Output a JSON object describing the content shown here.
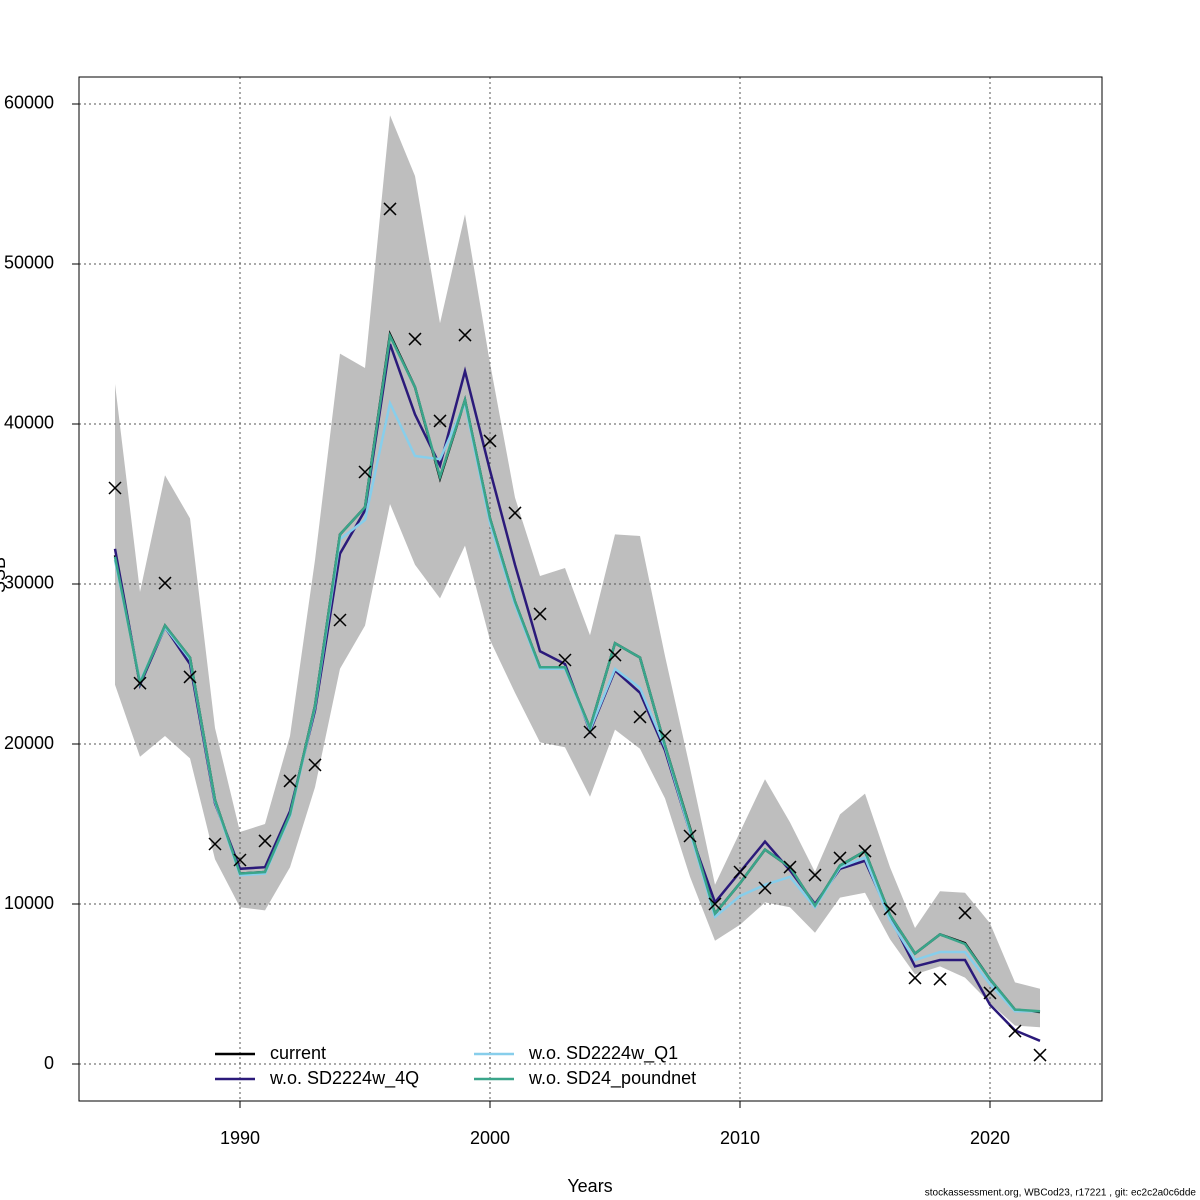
{
  "chart_data": {
    "type": "line",
    "x_label": "Years",
    "y_label": "SSB",
    "footnote": "stockassessment.org, WBCod23, r17221 , git: ec2c2a0c6dde",
    "x": [
      1985,
      1986,
      1987,
      1988,
      1989,
      1990,
      1991,
      1992,
      1993,
      1994,
      1995,
      1996,
      1997,
      1998,
      1999,
      2000,
      2001,
      2002,
      2003,
      2004,
      2005,
      2006,
      2007,
      2008,
      2009,
      2010,
      2011,
      2012,
      2013,
      2014,
      2015,
      2016,
      2017,
      2018,
      2019,
      2020,
      2021,
      2022
    ],
    "xlim": [
      1983.56,
      2024.48
    ],
    "xticks": [
      1990,
      2000,
      2010,
      2020
    ],
    "ylim": [
      -2312,
      61687
    ],
    "yticks": [
      0,
      10000,
      20000,
      30000,
      40000,
      50000,
      60000
    ],
    "grid": true,
    "band": {
      "color": "#bebebe",
      "upper": [
        42500,
        29500,
        36800,
        34100,
        21000,
        14500,
        15000,
        20500,
        31500,
        44400,
        43500,
        59300,
        55500,
        46300,
        53100,
        43800,
        35400,
        30500,
        31000,
        26800,
        33100,
        33000,
        25500,
        18500,
        11200,
        14500,
        17800,
        15100,
        12000,
        15600,
        16900,
        12300,
        8500,
        10800,
        10700,
        8800,
        5100,
        4700
      ],
      "lower": [
        23700,
        19200,
        20500,
        19100,
        12800,
        9800,
        9600,
        12300,
        17300,
        24700,
        27400,
        35000,
        31200,
        29100,
        32400,
        26500,
        23200,
        20100,
        19800,
        16700,
        20900,
        19700,
        16600,
        11700,
        7700,
        8700,
        10100,
        9800,
        8200,
        10400,
        10700,
        7800,
        5600,
        6100,
        5400,
        3800,
        2400,
        2300
      ]
    },
    "series": [
      {
        "name": "current",
        "color": "#000000",
        "values": [
          31800,
          23800,
          27400,
          25400,
          16500,
          11900,
          12000,
          15600,
          22400,
          33100,
          34800,
          45600,
          42300,
          36600,
          41500,
          34100,
          28900,
          24800,
          24800,
          21000,
          26300,
          25400,
          19900,
          14750,
          9400,
          11300,
          13400,
          12300,
          9900,
          12400,
          13300,
          9300,
          6900,
          8100,
          7550,
          5300,
          3400,
          3250
        ]
      },
      {
        "name": "w.o. SD2224w_4Q",
        "color": "#2b1a7a",
        "values": [
          32200,
          23700,
          27300,
          25000,
          16300,
          12200,
          12300,
          15800,
          22100,
          31900,
          34600,
          45000,
          40600,
          37400,
          43300,
          37100,
          31200,
          25800,
          25000,
          20800,
          24600,
          23200,
          19600,
          14500,
          10100,
          12000,
          13900,
          12100,
          10000,
          12200,
          12700,
          9200,
          6100,
          6500,
          6500,
          3700,
          2100,
          1450
        ]
      },
      {
        "name": "w.o. SD2224w_Q1",
        "color": "#87ceeb",
        "values": [
          31500,
          23900,
          27300,
          25300,
          16400,
          11800,
          11900,
          15500,
          22300,
          32800,
          34000,
          41300,
          38000,
          37800,
          41300,
          33800,
          28700,
          24700,
          24700,
          20900,
          24700,
          23500,
          19800,
          14500,
          9200,
          10500,
          11200,
          11700,
          9800,
          12300,
          12900,
          9000,
          6500,
          7000,
          7000,
          5000,
          3300,
          3300
        ]
      },
      {
        "name": "w.o. SD24_poundnet",
        "color": "#3aa58a",
        "values": [
          31700,
          23800,
          27400,
          25400,
          16500,
          11900,
          12000,
          15600,
          22400,
          33100,
          34800,
          45500,
          42300,
          36700,
          41500,
          34100,
          28900,
          24800,
          24800,
          21000,
          26300,
          25400,
          19900,
          14700,
          9400,
          11300,
          13400,
          12300,
          9900,
          12400,
          13300,
          9300,
          6900,
          8100,
          7500,
          5300,
          3400,
          3300
        ]
      }
    ],
    "observations": {
      "color": "#000000",
      "values": [
        36000,
        23800,
        30060,
        24190,
        13750,
        12750,
        13940,
        17690,
        18690,
        27750,
        37000,
        53440,
        45310,
        40190,
        45560,
        38940,
        34440,
        28130,
        25250,
        20750,
        25560,
        21690,
        20500,
        14250,
        10000,
        12000,
        11000,
        12310,
        11810,
        12880,
        13310,
        9690,
        5380,
        5310,
        9440,
        4440,
        2060,
        560
      ]
    }
  }
}
